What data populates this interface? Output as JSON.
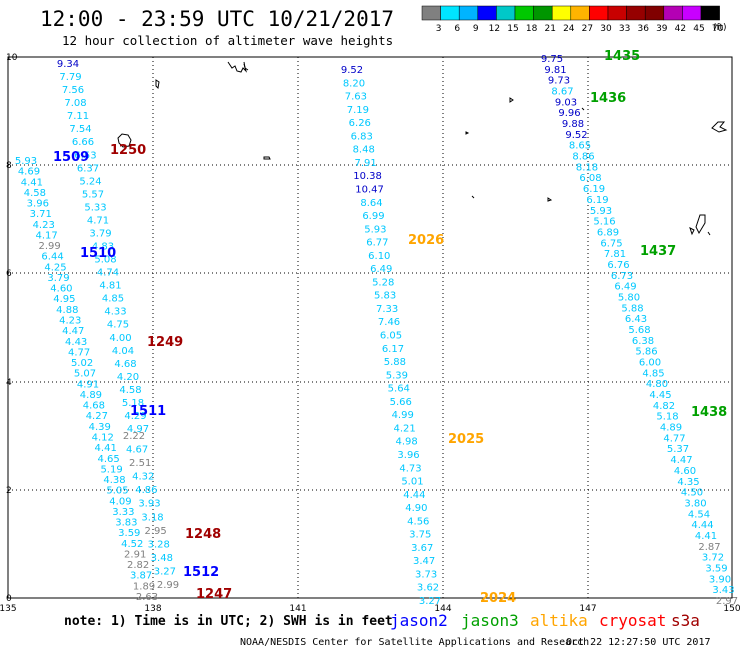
{
  "header": {
    "title": "12:00 - 23:59 UTC 10/21/2017",
    "subtitle": "12 hour collection of altimeter wave heights"
  },
  "colorbar": {
    "labels": [
      "3",
      "6",
      "9",
      "12",
      "15",
      "18",
      "21",
      "24",
      "27",
      "30",
      "33",
      "36",
      "39",
      "42",
      "45",
      "70"
    ],
    "unit": "(ft)",
    "colors": [
      "#808080",
      "#00e5ff",
      "#00b4ff",
      "#0000ff",
      "#00c8c8",
      "#00c800",
      "#009600",
      "#ffff00",
      "#ffb400",
      "#ff0000",
      "#c80000",
      "#960000",
      "#800000",
      "#b400b4",
      "#c800ff",
      "#000000"
    ]
  },
  "axes": {
    "x_ticks": [
      "135",
      "138",
      "141",
      "144",
      "147",
      "150"
    ],
    "y_ticks": [
      "0",
      "2",
      "4",
      "6",
      "8",
      "10"
    ]
  },
  "footer": {
    "note": "note: 1) Time is in UTC; 2) SWH is in feet",
    "credit": "NOAA/NESDIS Center for Satellite Applications and Research",
    "timestamp": "Oct 22 12:27:50 UTC 2017",
    "legend": [
      {
        "name": "jason2",
        "color": "#0000ff"
      },
      {
        "name": "jason3",
        "color": "#00a000"
      },
      {
        "name": "altika",
        "color": "#ffa500"
      },
      {
        "name": "cryosat",
        "color": "#ff0000"
      },
      {
        "name": "s3a",
        "color": "#a00000"
      }
    ]
  },
  "time_labels": [
    {
      "text": "1509",
      "color": "#0000ff"
    },
    {
      "text": "1250",
      "color": "#a00000"
    },
    {
      "text": "1510",
      "color": "#0000ff"
    },
    {
      "text": "1249",
      "color": "#a00000"
    },
    {
      "text": "1511",
      "color": "#0000ff"
    },
    {
      "text": "1248",
      "color": "#a00000"
    },
    {
      "text": "1512",
      "color": "#0000ff"
    },
    {
      "text": "1247",
      "color": "#a00000"
    },
    {
      "text": "2026",
      "color": "#ffa500"
    },
    {
      "text": "2025",
      "color": "#ffa500"
    },
    {
      "text": "2024",
      "color": "#ffa500"
    },
    {
      "text": "1435",
      "color": "#00a000"
    },
    {
      "text": "1436",
      "color": "#00a000"
    },
    {
      "text": "1437",
      "color": "#00a000"
    },
    {
      "text": "1438",
      "color": "#00a000"
    }
  ],
  "tracks": [
    {
      "name": "jason2-west",
      "color": "#00c8ff",
      "values": [
        "9.34",
        "7.79",
        "7.56",
        "7.08",
        "7.11",
        "7.54",
        "6.66",
        "6.53",
        "6.37",
        "5.24",
        "5.57",
        "5.33",
        "4.71",
        "3.79",
        "4.83",
        "5.08",
        "4.74",
        "4.81",
        "4.85",
        "4.33",
        "4.75",
        "4.00",
        "4.04",
        "4.68",
        "4.20",
        "4.58",
        "5.18",
        "4.29",
        "4.97"
      ]
    },
    {
      "name": "jason2-west-2",
      "color": "#00c8ff",
      "values": [
        "5.93",
        "4.69",
        "4.41",
        "4.58",
        "3.96",
        "3.71",
        "4.23",
        "4.17",
        "2.99",
        "6.44",
        "4.25",
        "3.79",
        "4.60",
        "4.95",
        "4.88",
        "4.23",
        "4.47",
        "4.43",
        "4.77",
        "5.02",
        "5.07",
        "4.91",
        "4.89",
        "4.68",
        "4.27",
        "4.39",
        "4.12",
        "4.41",
        "4.65",
        "5.19",
        "4.38",
        "5.05",
        "4.09",
        "3.33",
        "3.83",
        "3.59",
        "4.52",
        "2.91",
        "2.82",
        "3.87",
        "1.89",
        "2.63"
      ]
    },
    {
      "name": "cryosat-west",
      "color": "#00c8ff",
      "values": [
        "2.22",
        "4.67",
        "2.51",
        "4.32",
        "4.86",
        "3.93",
        "3.18",
        "2.95",
        "3.28",
        "3.48",
        "3.27",
        "2.99"
      ]
    },
    {
      "name": "altika-mid",
      "color": "#00c8ff",
      "values": [
        "9.52",
        "8.20",
        "7.63",
        "7.19",
        "6.26",
        "6.83",
        "8.48",
        "7.91",
        "10.38",
        "10.47",
        "8.64",
        "6.99",
        "5.93",
        "6.77",
        "6.10",
        "6.49",
        "5.28",
        "5.83",
        "7.33",
        "7.46",
        "6.05",
        "6.17",
        "5.88",
        "5.39",
        "5.64",
        "5.66",
        "4.99",
        "4.21",
        "4.98",
        "3.96",
        "4.73",
        "5.01",
        "4.44",
        "4.90",
        "4.56",
        "3.75",
        "3.67",
        "3.47",
        "3.73",
        "3.62",
        "3.27"
      ]
    },
    {
      "name": "jason3-east",
      "color": "#00c8ff",
      "values": [
        "9.75",
        "9.81",
        "9.73",
        "8.67",
        "9.03",
        "9.96",
        "9.88",
        "9.52",
        "8.65",
        "8.86",
        "8.18",
        "6.08",
        "6.19",
        "6.19",
        "5.93",
        "5.16",
        "6.89",
        "6.75",
        "7.81",
        "6.76",
        "6.73",
        "6.49",
        "5.80",
        "5.88",
        "6.43",
        "5.68",
        "6.38",
        "5.86",
        "6.00",
        "4.85",
        "4.80",
        "4.45",
        "4.82",
        "5.18",
        "4.89",
        "4.77",
        "5.37",
        "4.47",
        "4.60",
        "4.35",
        "4.50",
        "3.80",
        "4.54",
        "4.44",
        "4.41",
        "2.87",
        "3.72",
        "3.59",
        "3.90",
        "3.43",
        "2.97"
      ]
    }
  ]
}
